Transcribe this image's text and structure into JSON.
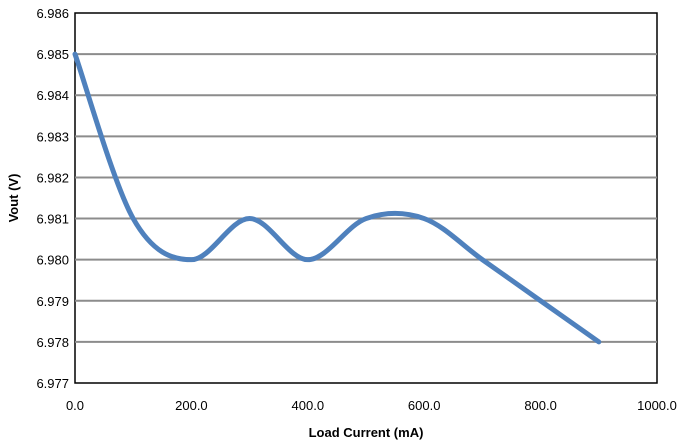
{
  "chart_data": {
    "type": "line",
    "title": "",
    "xlabel": "Load Current (mA)",
    "ylabel": "Vout (V)",
    "xlim": [
      0,
      1000
    ],
    "ylim": [
      6.977,
      6.986
    ],
    "x_ticks": [
      "0.0",
      "200.0",
      "400.0",
      "600.0",
      "800.0",
      "1000.0"
    ],
    "y_ticks": [
      "6.977",
      "6.978",
      "6.979",
      "6.980",
      "6.981",
      "6.982",
      "6.983",
      "6.984",
      "6.985",
      "6.986"
    ],
    "grid": "horizontal",
    "legend": "none",
    "series": [
      {
        "color": "#4f81bd",
        "smooth": true,
        "x": [
          0,
          100,
          200,
          300,
          400,
          500,
          600,
          700,
          800,
          900
        ],
        "y": [
          6.985,
          6.981,
          6.98,
          6.981,
          6.98,
          6.981,
          6.981,
          6.98,
          6.979,
          6.978
        ]
      }
    ]
  }
}
